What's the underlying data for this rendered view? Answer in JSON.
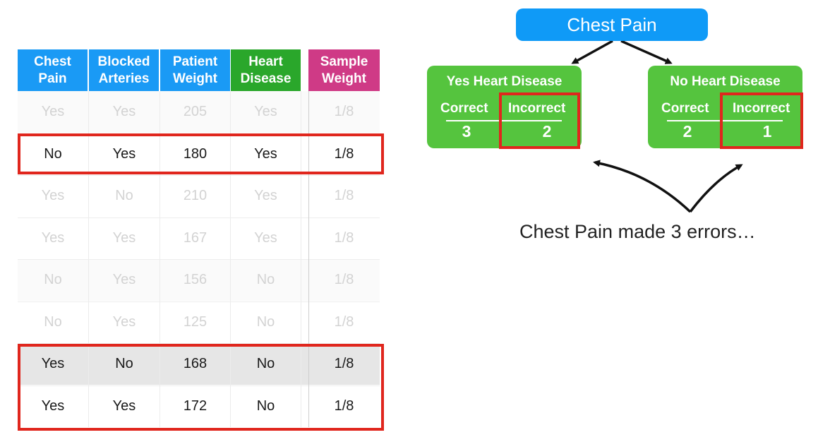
{
  "table": {
    "headers": [
      {
        "label": "Chest\nPain",
        "color": "#1a9af5"
      },
      {
        "label": "Blocked\nArteries",
        "color": "#1a9af5"
      },
      {
        "label": "Patient\nWeight",
        "color": "#1a9af5"
      },
      {
        "label": "Heart\nDisease",
        "color": "#2aa72b"
      },
      {
        "label": "Sample\nWeight",
        "color": "#cf3a86"
      }
    ],
    "rows": [
      {
        "cells": [
          "Yes",
          "Yes",
          "205",
          "Yes",
          "1/8"
        ],
        "faded": true
      },
      {
        "cells": [
          "No",
          "Yes",
          "180",
          "Yes",
          "1/8"
        ],
        "faded": false
      },
      {
        "cells": [
          "Yes",
          "No",
          "210",
          "Yes",
          "1/8"
        ],
        "faded": true
      },
      {
        "cells": [
          "Yes",
          "Yes",
          "167",
          "Yes",
          "1/8"
        ],
        "faded": true
      },
      {
        "cells": [
          "No",
          "Yes",
          "156",
          "No",
          "1/8"
        ],
        "faded": true
      },
      {
        "cells": [
          "No",
          "Yes",
          "125",
          "No",
          "1/8"
        ],
        "faded": true
      },
      {
        "cells": [
          "Yes",
          "No",
          "168",
          "No",
          "1/8"
        ],
        "faded": false
      },
      {
        "cells": [
          "Yes",
          "Yes",
          "172",
          "No",
          "1/8"
        ],
        "faded": false
      }
    ]
  },
  "tree": {
    "root": "Chest Pain",
    "left": {
      "title": "Yes Heart Disease",
      "correct_label": "Correct",
      "incorrect_label": "Incorrect",
      "correct": "3",
      "incorrect": "2"
    },
    "right": {
      "title": "No Heart Disease",
      "correct_label": "Correct",
      "incorrect_label": "Incorrect",
      "correct": "2",
      "incorrect": "1"
    }
  },
  "caption": "Chest Pain made 3 errors…",
  "colors": {
    "highlight": "#e0261d",
    "root_box": "#0f9af7",
    "leaf_box": "#55c43e"
  }
}
